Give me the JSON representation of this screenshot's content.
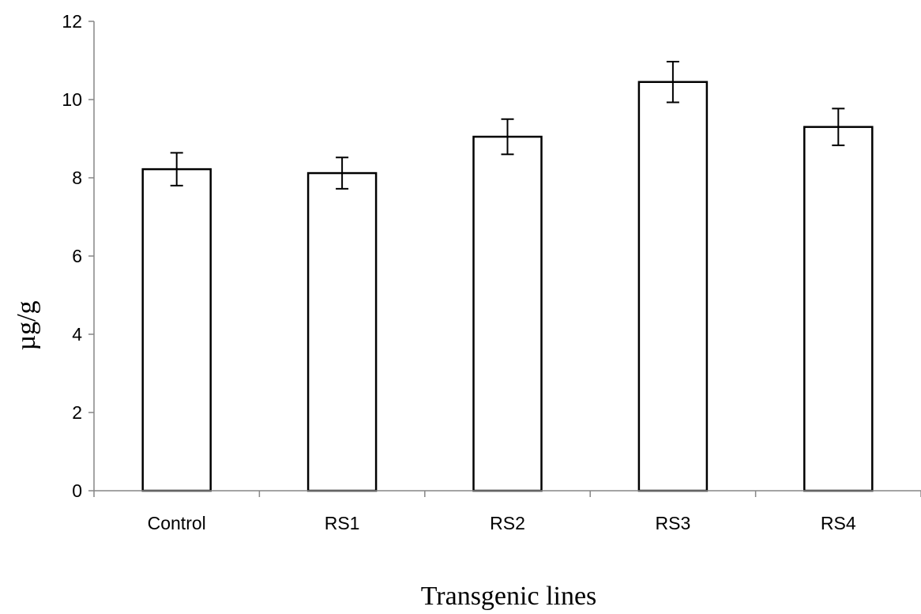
{
  "chart_data": {
    "type": "bar",
    "categories": [
      "Control",
      "RS1",
      "RS2",
      "RS3",
      "RS4"
    ],
    "values": [
      8.22,
      8.12,
      9.05,
      10.45,
      9.3
    ],
    "errors": [
      0.42,
      0.4,
      0.45,
      0.52,
      0.47
    ],
    "xlabel": "Transgenic lines",
    "ylabel": "µg/g",
    "ylim": [
      0,
      12
    ],
    "yticks": [
      0,
      2,
      4,
      6,
      8,
      10,
      12
    ],
    "grid": false,
    "legend": "none",
    "bar_fill": "#ffffff",
    "bar_stroke": "#000000",
    "axis_color": "#868686"
  }
}
